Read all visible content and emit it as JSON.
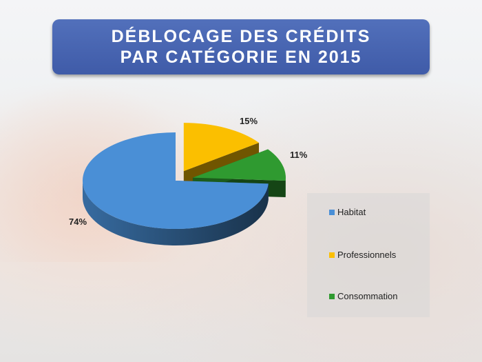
{
  "chart_data": {
    "type": "pie",
    "title": "DÉBLOCAGE DES CRÉDITS PAR CATÉGORIE EN 2015",
    "title_lines": [
      "DÉBLOCAGE DES CRÉDITS",
      "PAR CATÉGORIE EN 2015"
    ],
    "style": "3d-exploded",
    "legend_position": "right",
    "categories": [
      "Habitat",
      "Professionnels",
      "Consommation"
    ],
    "values": [
      74,
      15,
      11
    ],
    "data_labels": [
      "74%",
      "15%",
      "11%"
    ],
    "colors": [
      "#4a8fd6",
      "#fbbf00",
      "#2f9a30"
    ]
  }
}
